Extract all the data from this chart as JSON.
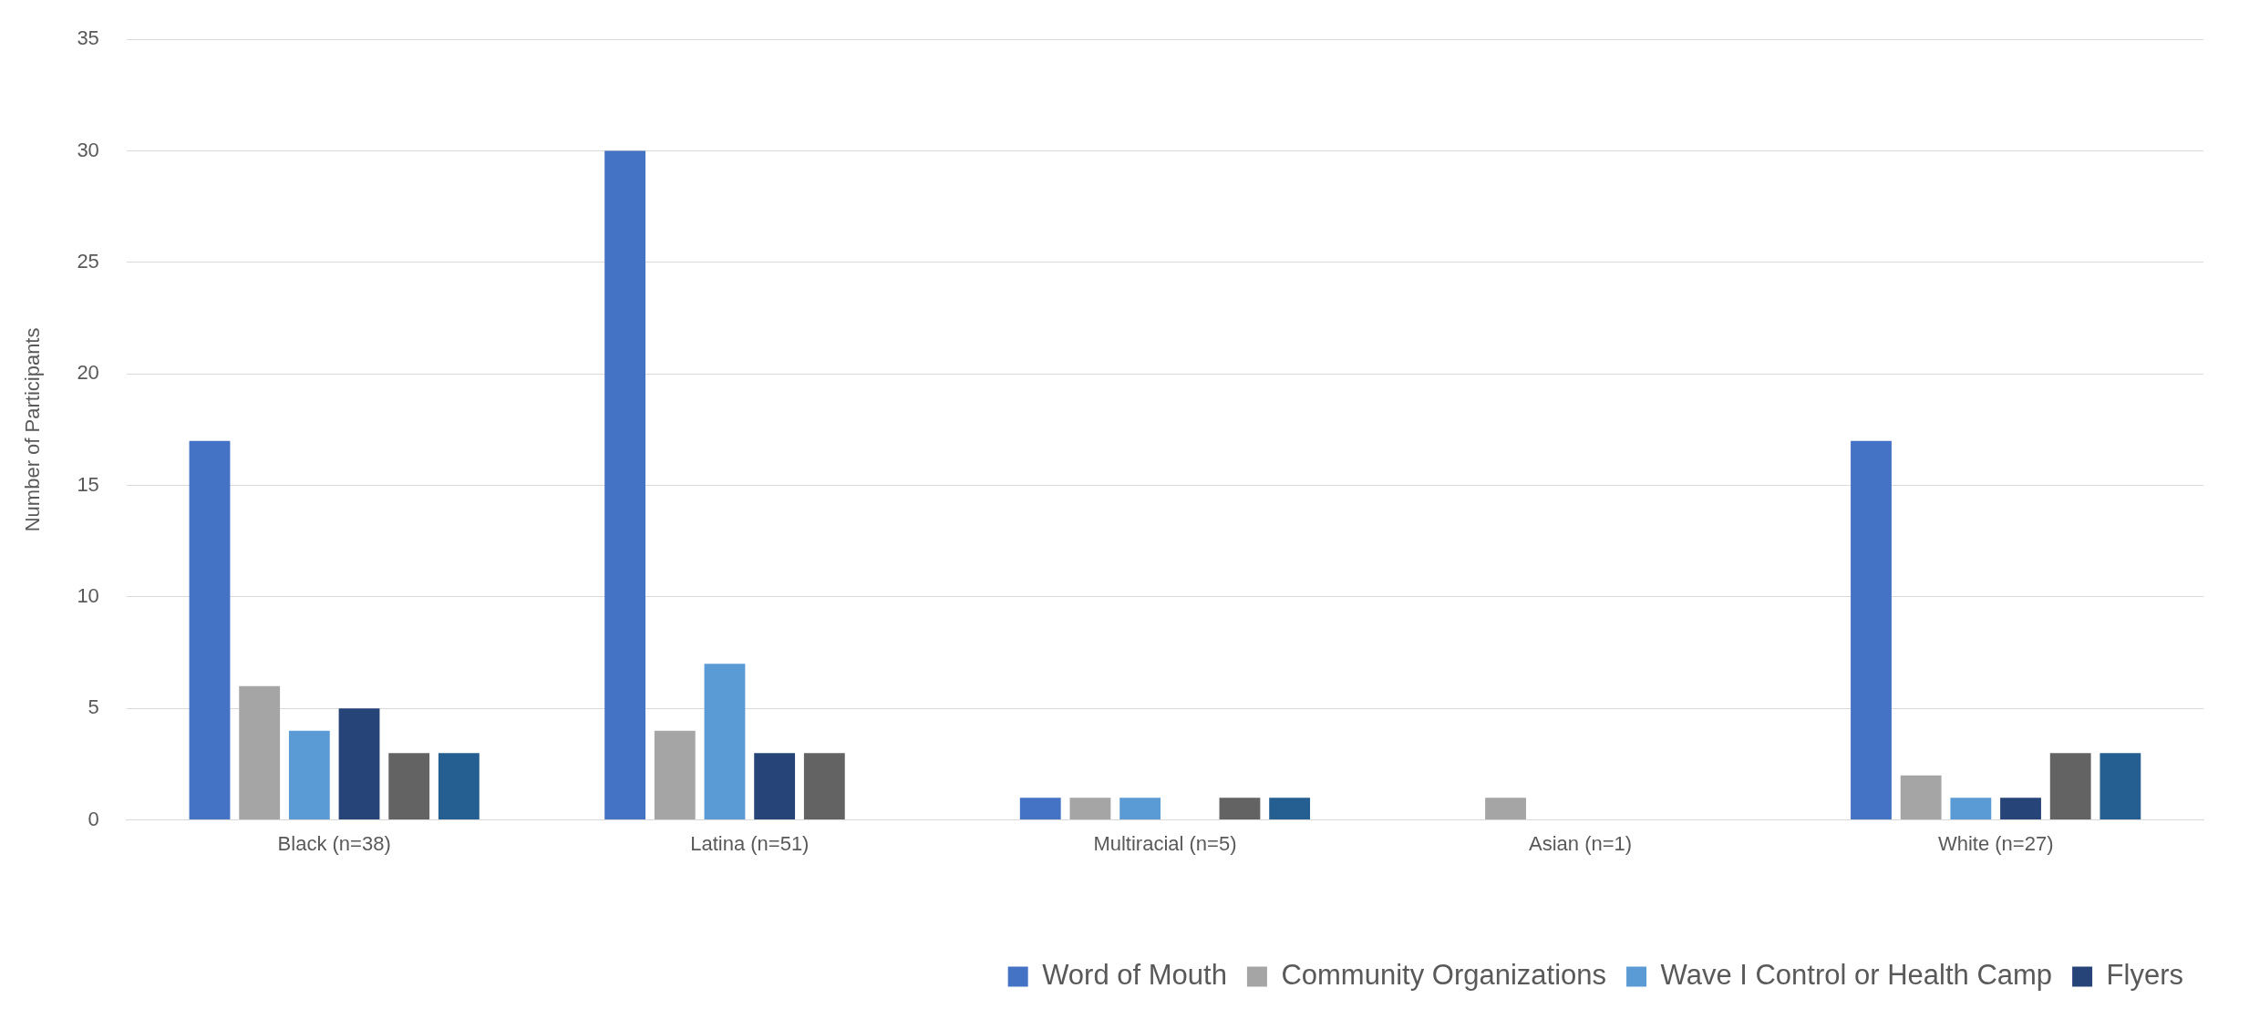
{
  "chart_data": {
    "type": "bar",
    "ylabel": "Number of Participants",
    "categories": [
      "Black (n=38)",
      "Latina (n=51)",
      "Multiracial (n=5)",
      "Asian (n=1)",
      "White (n=27)"
    ],
    "series": [
      {
        "name": "Word of Mouth",
        "color": "#4472c4",
        "values": [
          17,
          30,
          1,
          0,
          17
        ]
      },
      {
        "name": "Community Organizations",
        "color": "#a5a5a5",
        "values": [
          6,
          4,
          1,
          1,
          2
        ]
      },
      {
        "name": "Wave I Control or Health Camp",
        "color": "#5b9bd5",
        "values": [
          4,
          7,
          1,
          0,
          1
        ]
      },
      {
        "name": "Flyers",
        "color": "#264478",
        "values": [
          5,
          3,
          0,
          0,
          1
        ]
      },
      {
        "color": "#636363",
        "values": [
          3,
          3,
          1,
          0,
          3
        ]
      },
      {
        "color": "#255e91",
        "values": [
          3,
          0,
          1,
          0,
          3
        ]
      }
    ],
    "ylim": [
      0,
      35
    ],
    "yticks": [
      0,
      5,
      10,
      15,
      20,
      25,
      30,
      35
    ],
    "grid": "y",
    "legend": "bottom right"
  }
}
